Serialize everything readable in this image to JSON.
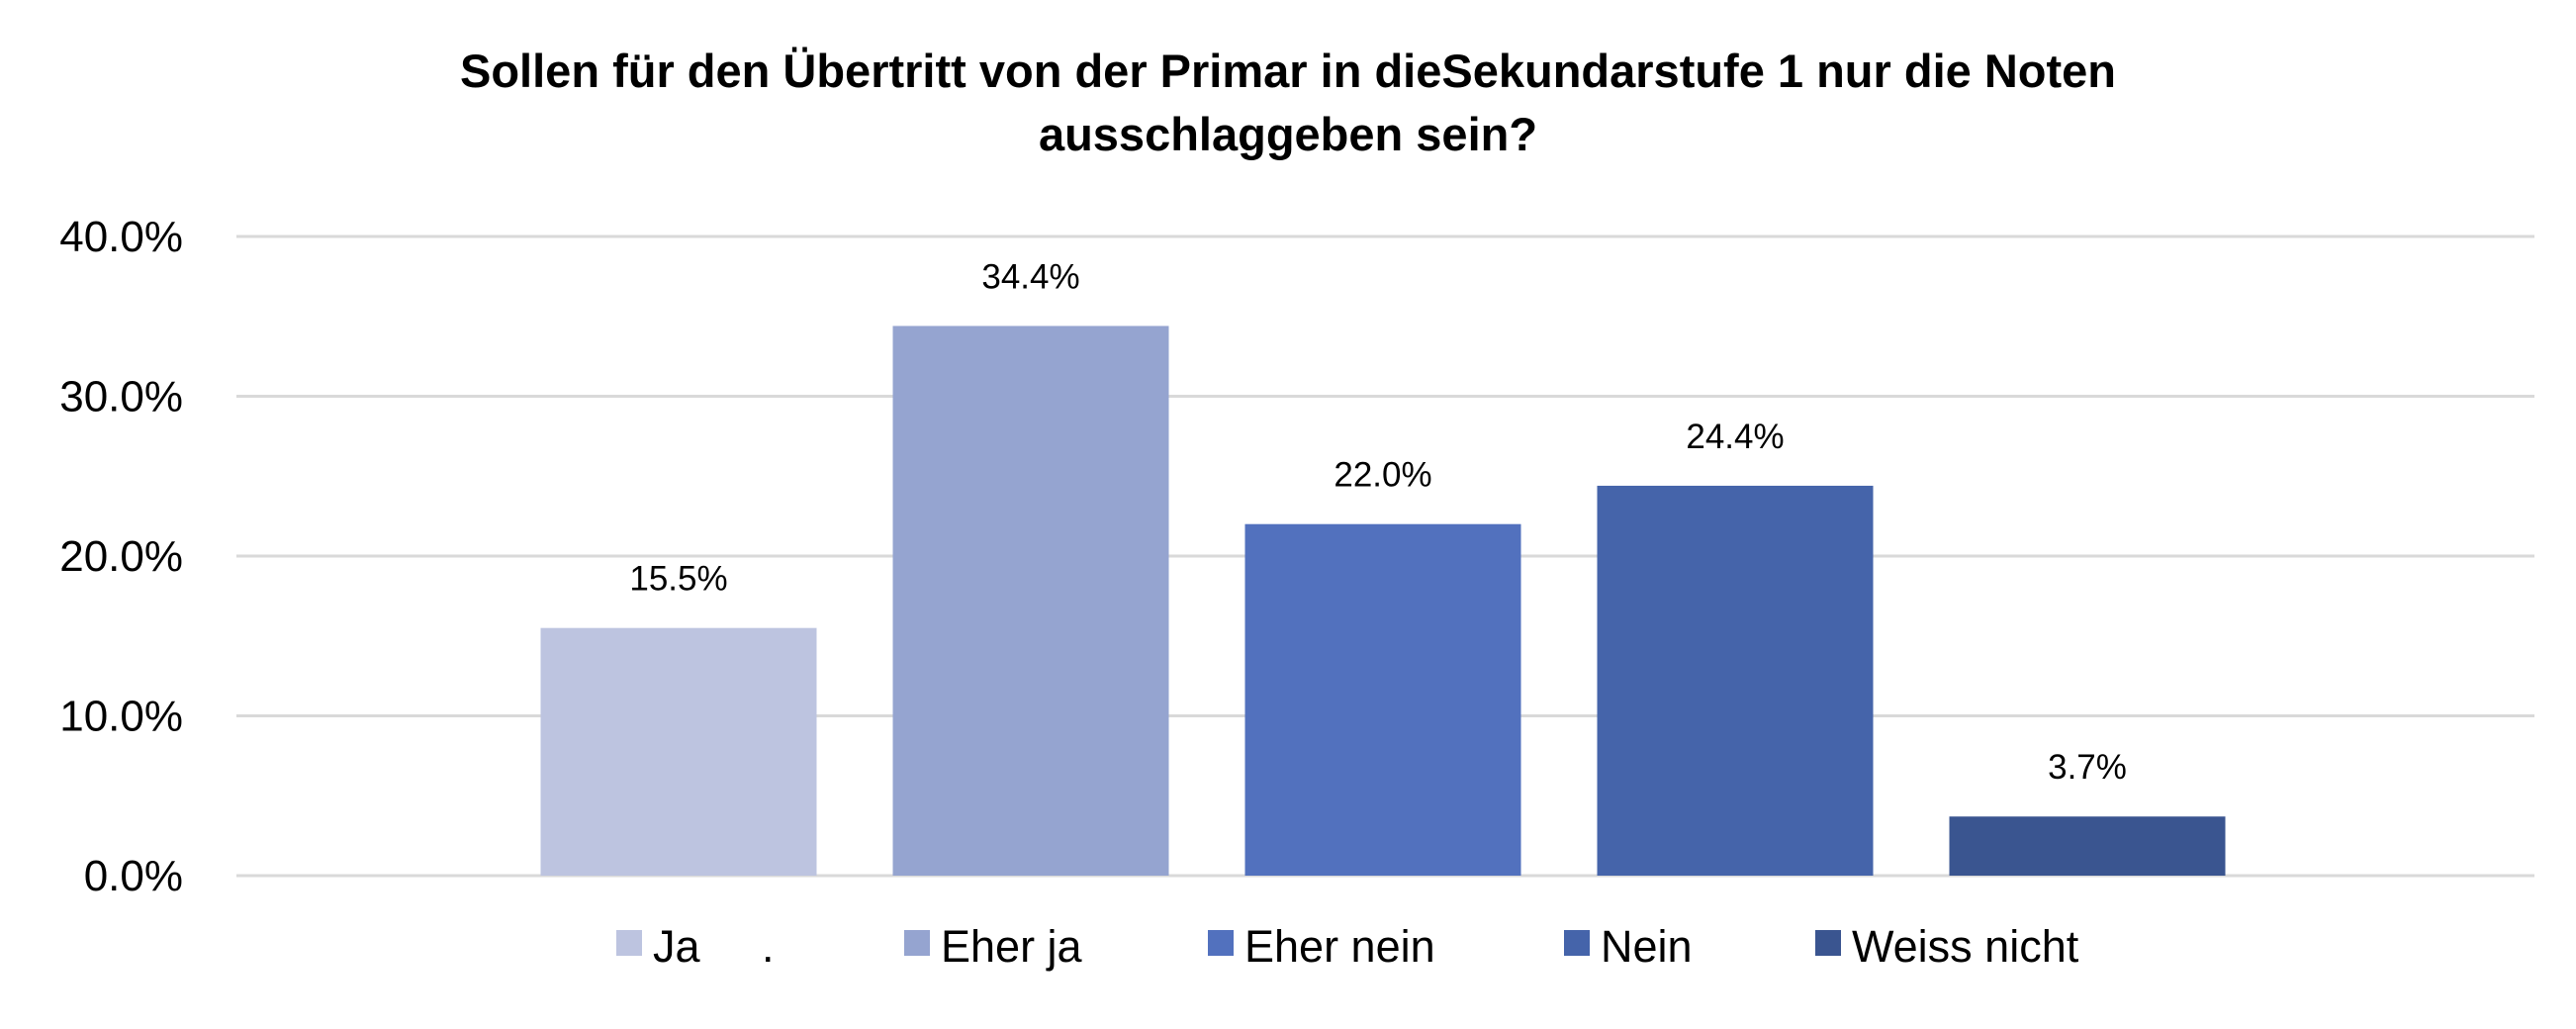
{
  "chart_data": {
    "type": "bar",
    "title": [
      "Sollen für den Übertritt von der Primar in dieSekundarstufe 1 nur die Noten",
      "ausschlaggeben sein?"
    ],
    "xlabel": "",
    "ylabel": "",
    "ylim": [
      0,
      40
    ],
    "yticks": [
      0,
      10,
      20,
      30,
      40
    ],
    "ytick_labels": [
      "0.0%",
      "10.0%",
      "20.0%",
      "30.0%",
      "40.0%"
    ],
    "grid": true,
    "legend_position": "bottom",
    "series": [
      {
        "name": "Ja     .",
        "value": 15.5,
        "label": "15.5%",
        "color": "#BDC4E0"
      },
      {
        "name": "Eher ja",
        "value": 34.4,
        "label": "34.4%",
        "color": "#95A4D0"
      },
      {
        "name": "Eher nein",
        "value": 22.0,
        "label": "22.0%",
        "color": "#5271BE"
      },
      {
        "name": "Nein",
        "value": 24.4,
        "label": "24.4%",
        "color": "#4564AA"
      },
      {
        "name": "Weiss nicht",
        "value": 3.7,
        "label": "3.7%",
        "color": "#3A5590"
      }
    ]
  }
}
